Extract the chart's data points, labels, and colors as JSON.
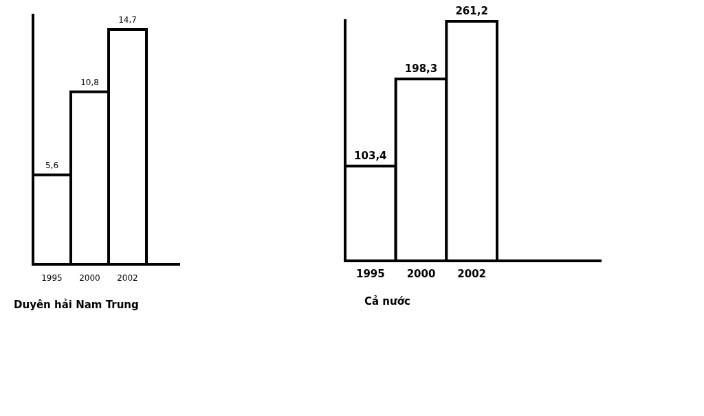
{
  "chart_data": [
    {
      "type": "bar",
      "title": "Duyên hải Nam Trung",
      "categories": [
        "1995",
        "2000",
        "2002"
      ],
      "values": [
        5.6,
        10.8,
        14.7
      ],
      "color": "#ffffff",
      "data_labels": true,
      "value_labels": [
        "5,6",
        "10,8",
        "14,7"
      ]
    },
    {
      "type": "bar",
      "title": "Cả nước",
      "categories": [
        "1995",
        "2000",
        "2002"
      ],
      "values": [
        103.4,
        198.3,
        261.2
      ],
      "color": "#ffffff",
      "data_labels": true,
      "value_labels": [
        "103,4",
        "198,3",
        "261,2"
      ]
    }
  ]
}
